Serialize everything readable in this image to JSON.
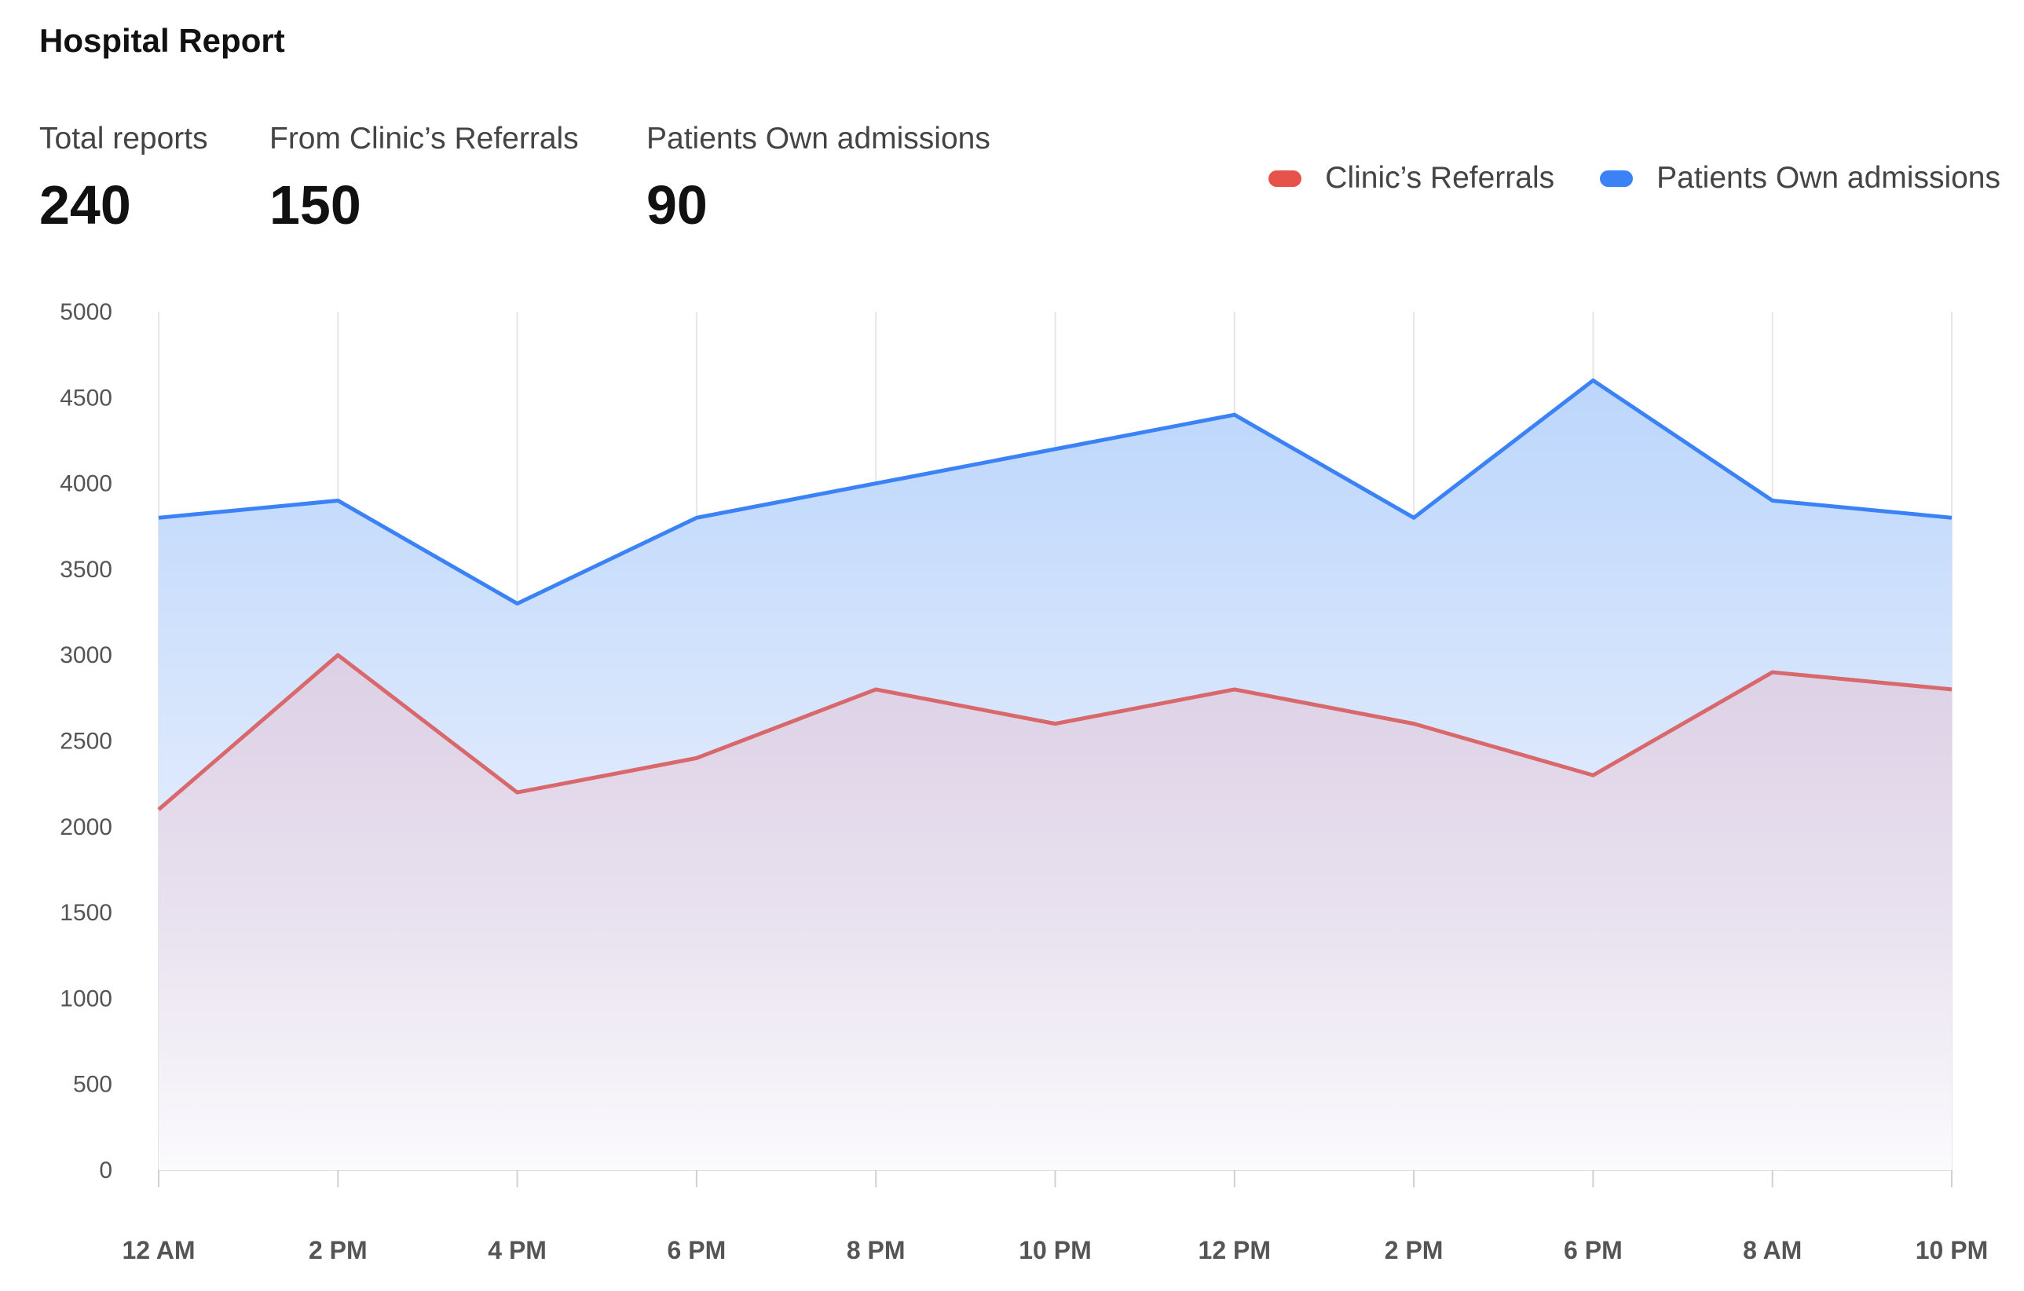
{
  "header": {
    "title": "Hospital Report"
  },
  "stats": [
    {
      "label": "Total reports",
      "value": "240"
    },
    {
      "label": "From  Clinic’s Referrals",
      "value": "150"
    },
    {
      "label": "Patients Own admissions",
      "value": "90"
    }
  ],
  "legend": [
    {
      "label": "Clinic’s Referrals",
      "color": "#e5534b"
    },
    {
      "label": "Patients Own admissions",
      "color": "#3b82f6"
    }
  ],
  "chart_data": {
    "type": "area",
    "categories": [
      "12 AM",
      "2 PM",
      "4 PM",
      "6 PM",
      "8 PM",
      "10 PM",
      "12 PM",
      "2 PM",
      "6 PM",
      "8 AM",
      "10 PM"
    ],
    "series": [
      {
        "name": "Clinic’s Referrals",
        "color": "#d9686c",
        "values": [
          2100,
          3000,
          2200,
          2400,
          2800,
          2600,
          2800,
          2600,
          2300,
          2900,
          2800
        ]
      },
      {
        "name": "Patients Own admissions",
        "color": "#3b82f6",
        "values": [
          3800,
          3900,
          3300,
          3800,
          4000,
          4200,
          4400,
          3800,
          4600,
          3900,
          3800
        ]
      }
    ],
    "yticks": [
      0,
      500,
      1000,
      1500,
      2000,
      2500,
      3000,
      3500,
      4000,
      4500,
      5000
    ],
    "ylim": [
      0,
      5000
    ],
    "grid": "vertical",
    "legend_position": "top-right"
  }
}
